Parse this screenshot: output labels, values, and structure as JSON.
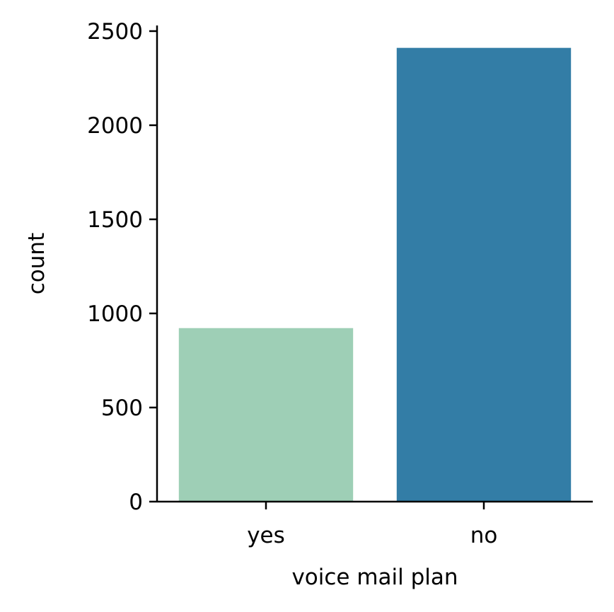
{
  "chart_data": {
    "type": "bar",
    "categories": [
      "yes",
      "no"
    ],
    "values": [
      922,
      2411
    ],
    "colors": [
      "#9ecfb6",
      "#337da6"
    ],
    "xlabel": "voice mail plan",
    "ylabel": "count",
    "ylim": [
      0,
      2530
    ],
    "yticks": [
      0,
      500,
      1000,
      1500,
      2000,
      2500
    ],
    "ytick_labels": [
      "0",
      "500",
      "1000",
      "1500",
      "2000",
      "2500"
    ],
    "grid": false,
    "legend": "none"
  }
}
